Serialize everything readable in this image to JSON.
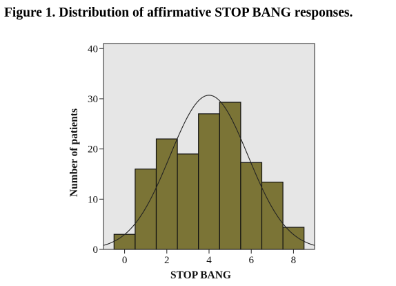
{
  "title": "Figure 1. Distribution of affirmative STOP BANG responses.",
  "chart_data": {
    "type": "bar",
    "categories": [
      "0",
      "1",
      "2",
      "3",
      "4",
      "5",
      "6",
      "7",
      "8"
    ],
    "values": [
      3,
      16,
      22,
      19,
      27,
      29.3,
      17.3,
      13.4,
      4.4
    ],
    "xlabel": "STOP BANG",
    "ylabel": "Number of patients",
    "xticks": [
      0,
      2,
      4,
      6,
      8
    ],
    "yticks": [
      0,
      10,
      20,
      30,
      40
    ],
    "xlim": [
      -1,
      9
    ],
    "ylim": [
      0,
      41
    ],
    "grid": false,
    "normal_curve": {
      "mean": 4,
      "peak": 30.7,
      "sd": 1.85
    },
    "colors": {
      "bar": "#7b7436",
      "bar_edge": "#111111",
      "plot_bg": "#e6e6e6",
      "curve": "#222222"
    }
  }
}
